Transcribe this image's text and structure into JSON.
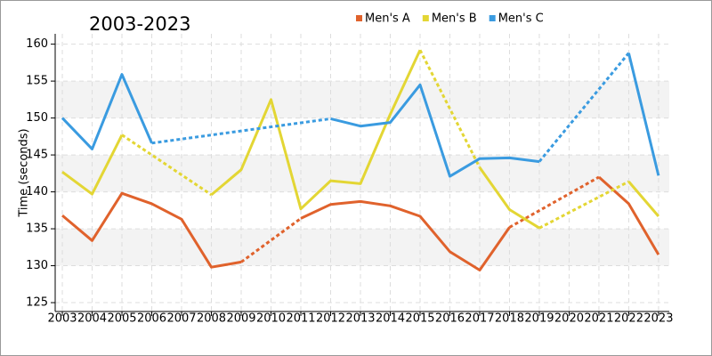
{
  "chart_data": {
    "type": "line",
    "title": "2003-2023",
    "y_label": "Time (seconds)",
    "x": [
      2003,
      2004,
      2005,
      2006,
      2007,
      2008,
      2009,
      2010,
      2011,
      2012,
      2013,
      2014,
      2015,
      2016,
      2017,
      2018,
      2019,
      2020,
      2021,
      2022,
      2023
    ],
    "series": [
      {
        "name": "Men's A",
        "color": "#e0622c",
        "values": [
          136.8,
          133.4,
          139.8,
          138.4,
          136.3,
          129.8,
          130.5,
          null,
          136.4,
          138.3,
          138.7,
          138.1,
          136.7,
          131.9,
          129.4,
          135.2,
          null,
          null,
          142.0,
          138.4,
          131.5
        ]
      },
      {
        "name": "Men's B",
        "color": "#e3d634",
        "values": [
          142.7,
          139.7,
          147.7,
          null,
          null,
          139.6,
          143.0,
          152.5,
          137.7,
          141.5,
          141.1,
          150.5,
          159.2,
          null,
          143.3,
          137.6,
          135.1,
          null,
          null,
          141.4,
          136.7
        ]
      },
      {
        "name": "Men's C",
        "color": "#3a9be0",
        "values": [
          150.0,
          145.8,
          155.9,
          146.6,
          null,
          null,
          null,
          null,
          null,
          149.9,
          148.9,
          149.4,
          154.5,
          142.1,
          144.5,
          144.6,
          144.1,
          null,
          null,
          158.8,
          142.2
        ]
      }
    ],
    "xlim": [
      2002.76,
      2023.36
    ],
    "xticks": [
      2003,
      2004,
      2005,
      2006,
      2007,
      2008,
      2009,
      2010,
      2011,
      2012,
      2013,
      2014,
      2015,
      2016,
      2017,
      2018,
      2019,
      2020,
      2021,
      2022,
      2023
    ],
    "ylim": [
      123.8,
      161.4
    ],
    "yticks": [
      125,
      130,
      135,
      140,
      145,
      150,
      155,
      160
    ],
    "grid": true,
    "bands": true,
    "connect_gaps": true,
    "legend": "top"
  }
}
